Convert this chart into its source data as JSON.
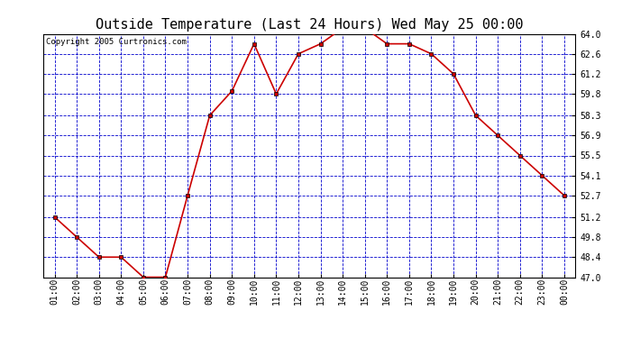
{
  "title": "Outside Temperature (Last 24 Hours) Wed May 25 00:00",
  "copyright": "Copyright 2005 Curtronics.com",
  "x_labels": [
    "01:00",
    "02:00",
    "03:00",
    "04:00",
    "05:00",
    "06:00",
    "07:00",
    "08:00",
    "09:00",
    "10:00",
    "11:00",
    "12:00",
    "13:00",
    "14:00",
    "15:00",
    "16:00",
    "17:00",
    "18:00",
    "19:00",
    "20:00",
    "21:00",
    "22:00",
    "23:00",
    "00:00"
  ],
  "y_values": [
    51.2,
    49.8,
    48.4,
    48.4,
    47.0,
    47.0,
    52.7,
    58.3,
    60.0,
    63.3,
    59.8,
    62.6,
    63.3,
    64.4,
    64.4,
    63.3,
    63.3,
    62.6,
    61.2,
    58.3,
    56.9,
    55.5,
    54.1,
    52.7
  ],
  "y_min": 47.0,
  "y_max": 64.0,
  "y_ticks": [
    47.0,
    48.4,
    49.8,
    51.2,
    52.7,
    54.1,
    55.5,
    56.9,
    58.3,
    59.8,
    61.2,
    62.6,
    64.0
  ],
  "line_color": "#cc0000",
  "marker_color": "#000000",
  "grid_color": "#0000cc",
  "bg_color": "#ffffff",
  "plot_bg_color": "#ffffff",
  "title_fontsize": 11,
  "tick_fontsize": 7,
  "copyright_fontsize": 6.5
}
